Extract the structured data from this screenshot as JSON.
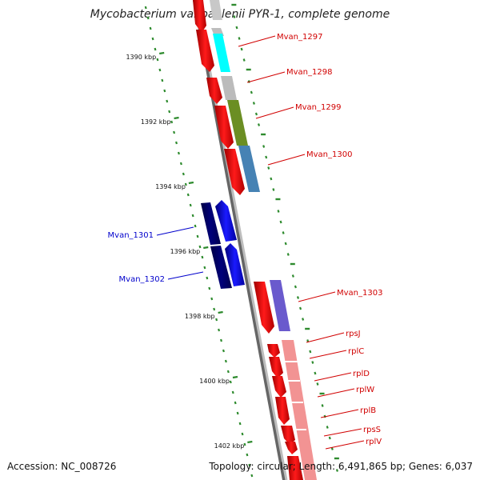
{
  "title": "Mycobacterium vanbaalenii PYR-1, complete genome",
  "accession": "Accession: NC_008726",
  "summary": "Topology: circular; Length: 6,491,865 bp; Genes: 6,037",
  "ticks": [
    "1390 kbp",
    "1392 kbp",
    "1394 kbp",
    "1396 kbp",
    "1398 kbp",
    "1400 kbp",
    "1402 kbp"
  ],
  "genes": [
    {
      "name": "Mvan_1297",
      "strand": "forward",
      "color": "#d10000"
    },
    {
      "name": "Mvan_1298",
      "strand": "forward",
      "color": "#d10000"
    },
    {
      "name": "Mvan_1299",
      "strand": "forward",
      "color": "#d10000"
    },
    {
      "name": "Mvan_1300",
      "strand": "forward",
      "color": "#d10000"
    },
    {
      "name": "Mvan_1301",
      "strand": "reverse",
      "color": "#0000cc"
    },
    {
      "name": "Mvan_1302",
      "strand": "reverse",
      "color": "#0000cc"
    },
    {
      "name": "Mvan_1303",
      "strand": "forward",
      "color": "#d10000"
    },
    {
      "name": "rpsJ",
      "strand": "forward",
      "color": "#d10000"
    },
    {
      "name": "rplC",
      "strand": "forward",
      "color": "#d10000"
    },
    {
      "name": "rplD",
      "strand": "forward",
      "color": "#d10000"
    },
    {
      "name": "rplW",
      "strand": "forward",
      "color": "#d10000"
    },
    {
      "name": "rplB",
      "strand": "forward",
      "color": "#d10000"
    },
    {
      "name": "rpsS",
      "strand": "forward",
      "color": "#d10000"
    },
    {
      "name": "rplV",
      "strand": "forward",
      "color": "#d10000"
    }
  ],
  "colors": {
    "forward_cds": "#ff0000",
    "reverse_cds": "#0000ff",
    "backbone": "#999999",
    "tick": "#2e8b2e",
    "cog_gray": "#bbbbbb",
    "cog_cyan": "#00ffff",
    "cog_olive": "#6b8e23",
    "cog_steelblue": "#4682b4",
    "cog_slateblue": "#6a5acd",
    "cog_salmon": "#f08080"
  }
}
